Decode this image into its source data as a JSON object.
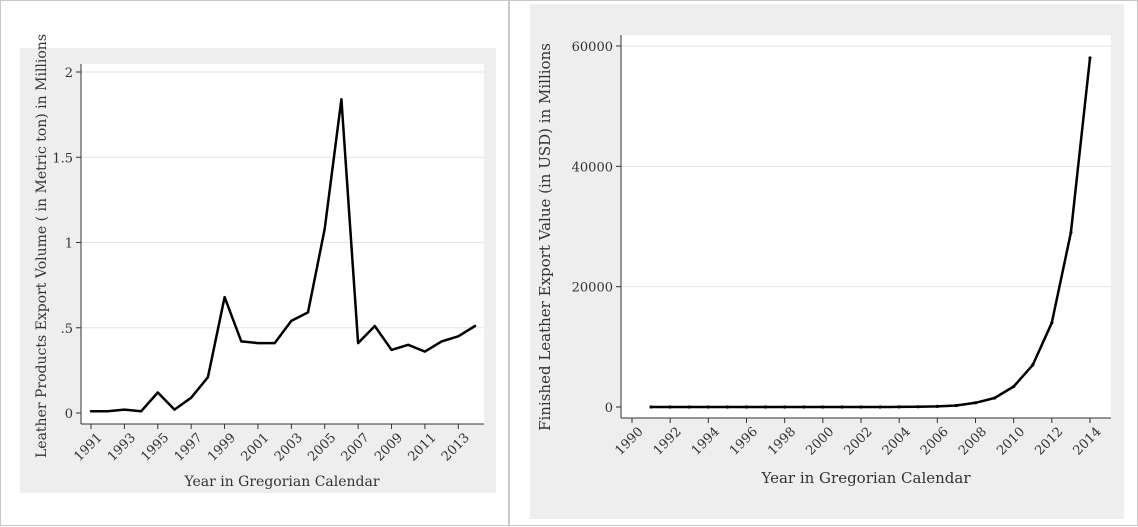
{
  "chart_data": [
    {
      "type": "line",
      "title": "",
      "xlabel": "Year in Gregorian Calendar",
      "ylabel": "Leather Products Export  Volume ( in Metric ton) in Millions",
      "x": [
        1991,
        1992,
        1993,
        1994,
        1995,
        1996,
        1997,
        1998,
        1999,
        2000,
        2001,
        2002,
        2003,
        2004,
        2005,
        2006,
        2007,
        2008,
        2009,
        2010,
        2011,
        2012,
        2013,
        2014
      ],
      "series": [
        {
          "values": [
            0.01,
            0.01,
            0.02,
            0.01,
            0.12,
            0.02,
            0.09,
            0.21,
            0.68,
            0.42,
            0.41,
            0.41,
            0.54,
            0.59,
            1.08,
            1.84,
            0.41,
            0.51,
            0.37,
            0.4,
            0.36,
            0.42,
            0.45,
            0.51
          ]
        }
      ],
      "xticks": [
        "1991",
        "1993",
        "1995",
        "1997",
        "1999",
        "2001",
        "2003",
        "2005",
        "2007",
        "2009",
        "2011",
        "2013"
      ],
      "yticks": [
        "0",
        ".5",
        "1",
        "1.5",
        "2"
      ],
      "ylim": [
        0,
        2
      ],
      "grid": true,
      "line_color": "#000000",
      "frame_color": "#eeeeee"
    },
    {
      "type": "line",
      "title": "",
      "xlabel": "Year in Gregorian Calendar",
      "ylabel": "Finished Leather  Export Value (in USD) in Millions",
      "x": [
        1991,
        1992,
        1993,
        1994,
        1995,
        1996,
        1997,
        1998,
        1999,
        2000,
        2001,
        2002,
        2003,
        2004,
        2005,
        2006,
        2007,
        2008,
        2009,
        2010,
        2011,
        2012,
        2013,
        2014
      ],
      "series": [
        {
          "values": [
            0,
            0,
            0,
            0,
            0,
            0,
            0,
            0,
            0,
            0,
            0,
            0,
            0,
            20,
            50,
            100,
            250,
            700,
            1500,
            3400,
            7000,
            14000,
            29000,
            58000
          ]
        }
      ],
      "xticks": [
        "1990",
        "1992",
        "1994",
        "1996",
        "1998",
        "2000",
        "2002",
        "2004",
        "2006",
        "2008",
        "2010",
        "2012",
        "2014"
      ],
      "yticks": [
        "0",
        "20000",
        "40000",
        "60000"
      ],
      "ylim": [
        0,
        60000
      ],
      "grid": true,
      "line_color": "#000000",
      "frame_color": "#eeeeee"
    }
  ]
}
